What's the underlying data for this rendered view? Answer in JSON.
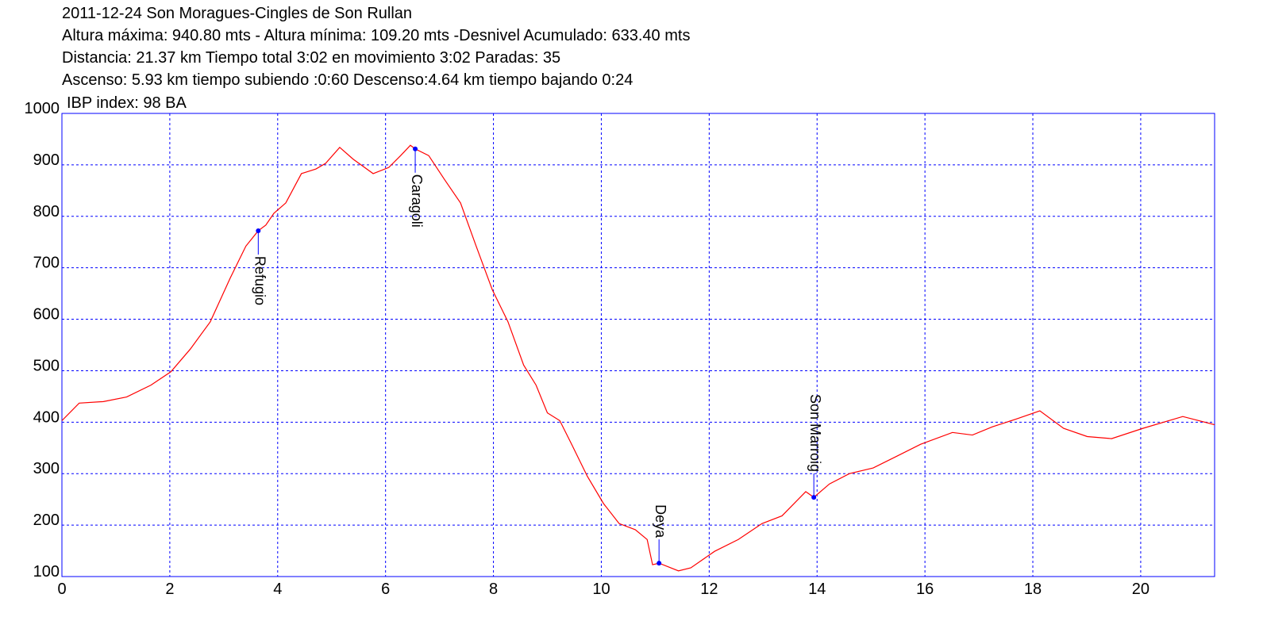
{
  "chart_data": {
    "type": "line",
    "title_lines": [
      "2011-12-24 Son Moragues-Cingles de Son Rullan",
      "Altura máxima: 940.80 mts - Altura mínima: 109.20 mts -Desnivel Acumulado: 633.40 mts",
      "Distancia: 21.37 km  Tiempo total 3:02  en movimiento 3:02 Paradas: 35",
      "Ascenso: 5.93 km  tiempo subiendo :0:60  Descenso:4.64 km tiempo bajando 0:24",
      "IBP index: 98 BA"
    ],
    "x": [
      0,
      0.32,
      0.77,
      1.2,
      1.65,
      2.02,
      2.38,
      2.75,
      3.12,
      3.41,
      3.64,
      3.78,
      3.93,
      4.15,
      4.44,
      4.71,
      4.89,
      5.15,
      5.4,
      5.77,
      6.06,
      6.28,
      6.46,
      6.55,
      6.8,
      7.09,
      7.39,
      7.68,
      7.98,
      8.27,
      8.56,
      8.79,
      9.0,
      9.23,
      9.45,
      9.74,
      10.04,
      10.33,
      10.63,
      10.85,
      10.95,
      11.07,
      11.43,
      11.66,
      12.1,
      12.54,
      12.98,
      13.35,
      13.79,
      13.94,
      14.23,
      14.6,
      15.04,
      15.48,
      15.92,
      16.51,
      16.88,
      17.25,
      17.69,
      18.13,
      18.57,
      19.01,
      19.46,
      20.04,
      20.78,
      21.37
    ],
    "series": [
      {
        "color": "#ff0000",
        "values": [
          403,
          437,
          440,
          449,
          472,
          498,
          542,
          595,
          680,
          742,
          772,
          783,
          806,
          826,
          883,
          892,
          903,
          934,
          911,
          883,
          895,
          918,
          938,
          931,
          918,
          872,
          826,
          742,
          657,
          595,
          511,
          472,
          418,
          403,
          357,
          295,
          242,
          203,
          191,
          172,
          123,
          126,
          111,
          117,
          149,
          172,
          203,
          218,
          265,
          254,
          280,
          300,
          311,
          334,
          357,
          380,
          375,
          391,
          406,
          422,
          388,
          372,
          368,
          388,
          411,
          395
        ]
      }
    ],
    "annotations": [
      {
        "label": "Refugio",
        "x": 3.64,
        "y": 772
      },
      {
        "label": "Caragoli",
        "x": 6.55,
        "y": 931
      },
      {
        "label": "Deya",
        "x": 11.07,
        "y": 126
      },
      {
        "label": "Son Marroig",
        "x": 13.94,
        "y": 254
      }
    ],
    "annotation_color": "#0000ff",
    "grid_color": "#0000ff",
    "grid": true,
    "xlim": [
      0,
      21.37
    ],
    "ylim": [
      100,
      1000
    ],
    "xticks": [
      0,
      2,
      4,
      6,
      8,
      10,
      12,
      14,
      16,
      18,
      20
    ],
    "yticks": [
      100,
      200,
      300,
      400,
      500,
      600,
      700,
      800,
      900,
      1000
    ]
  }
}
